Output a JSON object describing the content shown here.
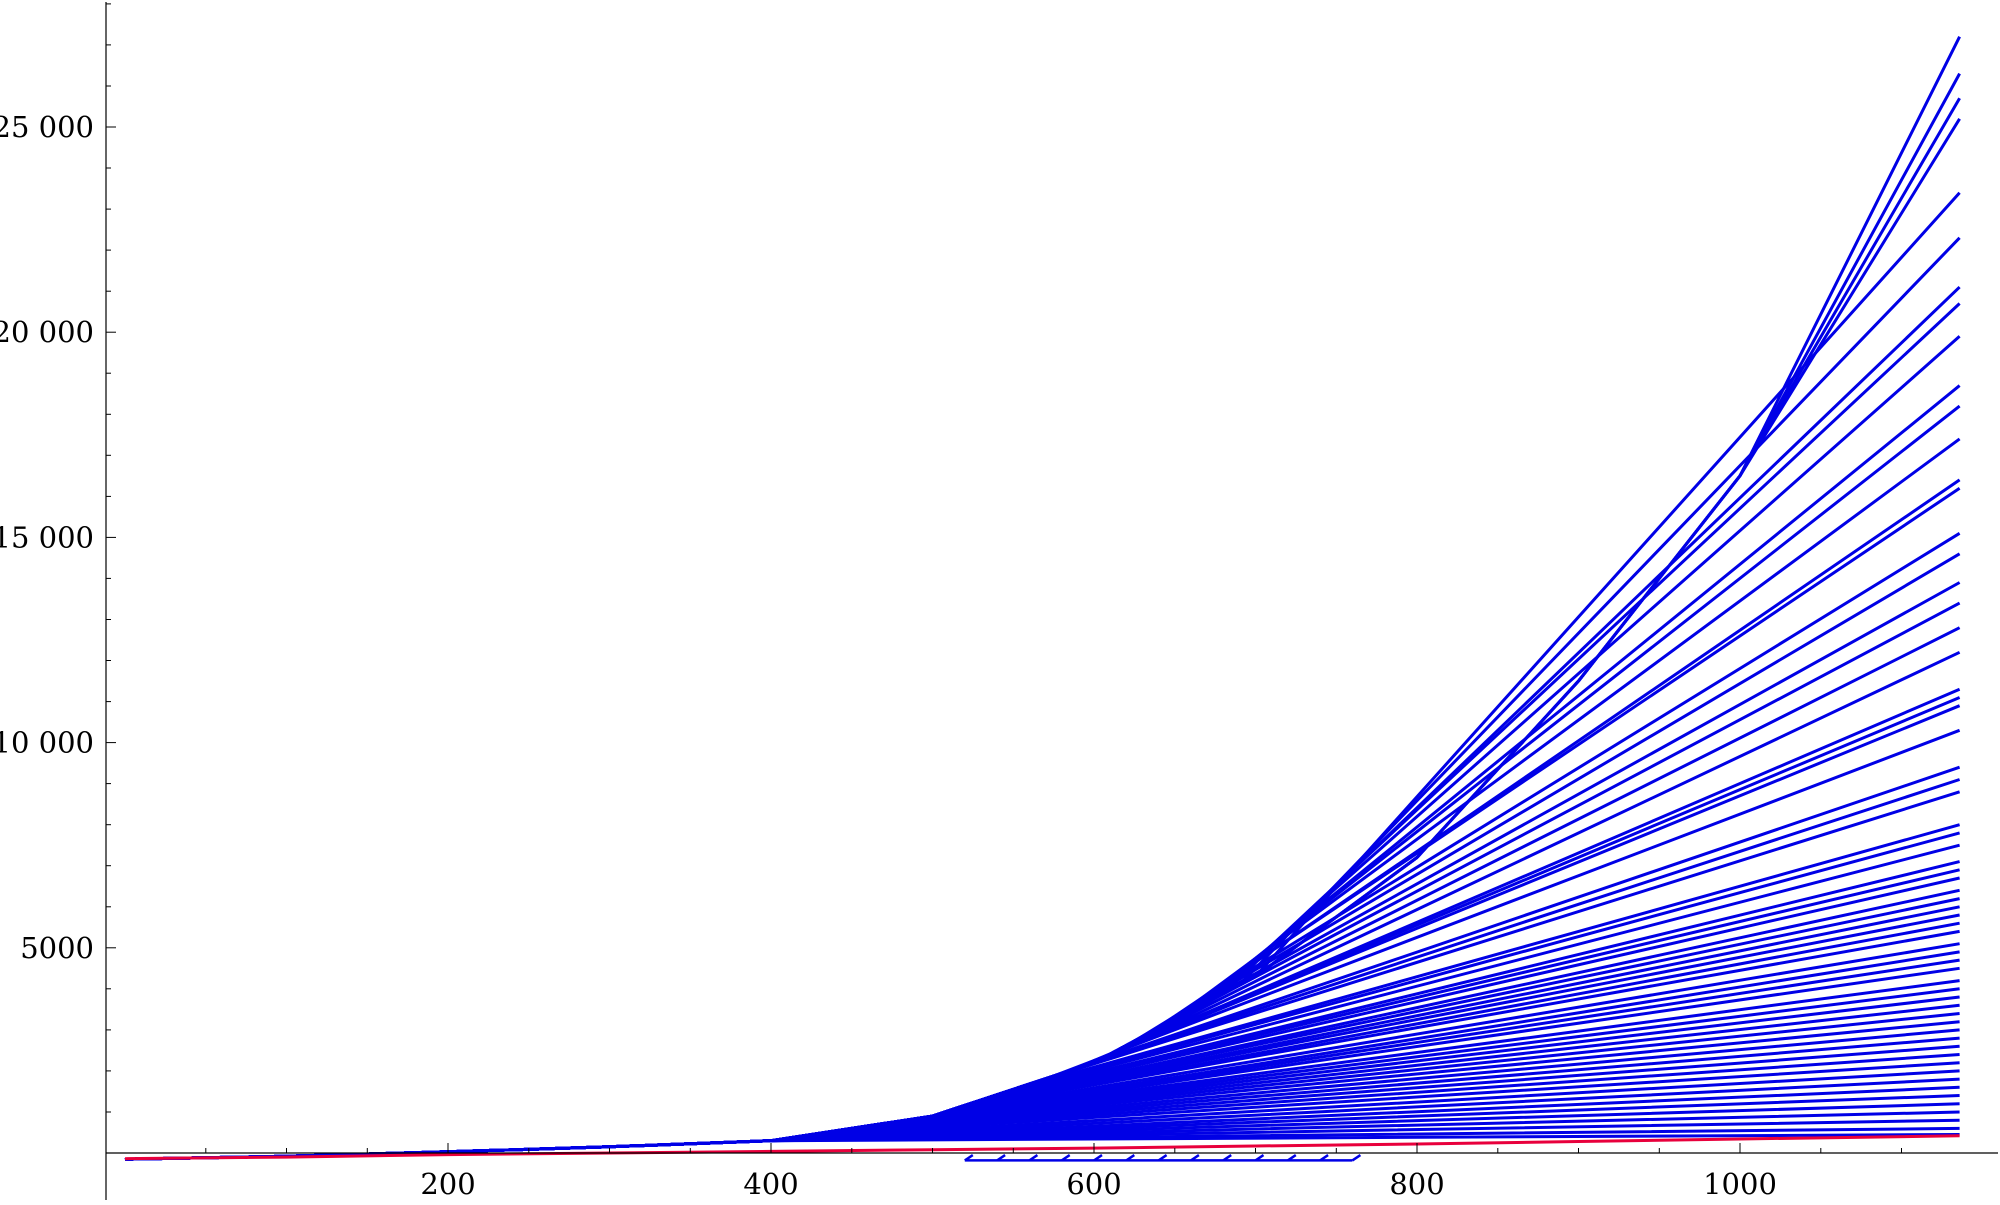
{
  "chart_data": {
    "type": "line",
    "title": "",
    "xlabel": "",
    "ylabel": "",
    "xlim": [
      0,
      1140
    ],
    "ylim": [
      -200,
      28000
    ],
    "x_ticks": [
      {
        "value": 200,
        "label": "200"
      },
      {
        "value": 400,
        "label": "400"
      },
      {
        "value": 600,
        "label": "600"
      },
      {
        "value": 800,
        "label": "800"
      },
      {
        "value": 1000,
        "label": "1000"
      }
    ],
    "y_ticks": [
      {
        "value": 5000,
        "label": "5000"
      },
      {
        "value": 10000,
        "label": "10 000"
      },
      {
        "value": 15000,
        "label": "15 000"
      },
      {
        "value": 20000,
        "label": "20 000"
      },
      {
        "value": 25000,
        "label": "25 000"
      }
    ],
    "x_minor_step": 50,
    "y_minor_step": 1000,
    "grid": false,
    "legend": "none",
    "colors": {
      "blue": "#0000e6",
      "red": "#e8003c"
    },
    "blue_envelope": {
      "x": [
        0,
        100,
        200,
        300,
        400,
        500,
        600,
        700,
        800,
        900,
        1000,
        1136
      ],
      "y": [
        -150,
        -80,
        30,
        150,
        300,
        900,
        2200,
        4300,
        7200,
        11500,
        16500,
        27200
      ]
    },
    "blue_endpoints": [
      27200,
      26300,
      25700,
      25200,
      23400,
      22300,
      21100,
      20700,
      19900,
      18700,
      18200,
      17400,
      16400,
      16200,
      15100,
      14600,
      13900,
      13400,
      12800,
      12200,
      11300,
      11100,
      10900,
      10300,
      9400,
      9100,
      8800,
      8000,
      7800,
      7500,
      7100,
      6900,
      6700,
      6400,
      6200,
      6000,
      5800,
      5600,
      5400,
      5100,
      4900,
      4700,
      4500,
      4200,
      4000,
      3800,
      3600,
      3400,
      3200,
      3000,
      2800,
      2600,
      2400,
      2200,
      2000,
      1800,
      1600,
      1400,
      1200,
      1000,
      800,
      600,
      450
    ],
    "blue_dashed_segments": {
      "x_start": 520,
      "x_end": 760,
      "y_top": -50,
      "y_bottom": -180,
      "count": 13
    },
    "series": [
      {
        "name": "",
        "color": "red",
        "x": [
          0,
          100,
          200,
          300,
          400,
          500,
          600,
          700,
          800,
          900,
          1000,
          1136
        ],
        "y": [
          -140,
          -100,
          -40,
          0,
          40,
          80,
          120,
          170,
          220,
          280,
          340,
          420
        ]
      }
    ]
  }
}
